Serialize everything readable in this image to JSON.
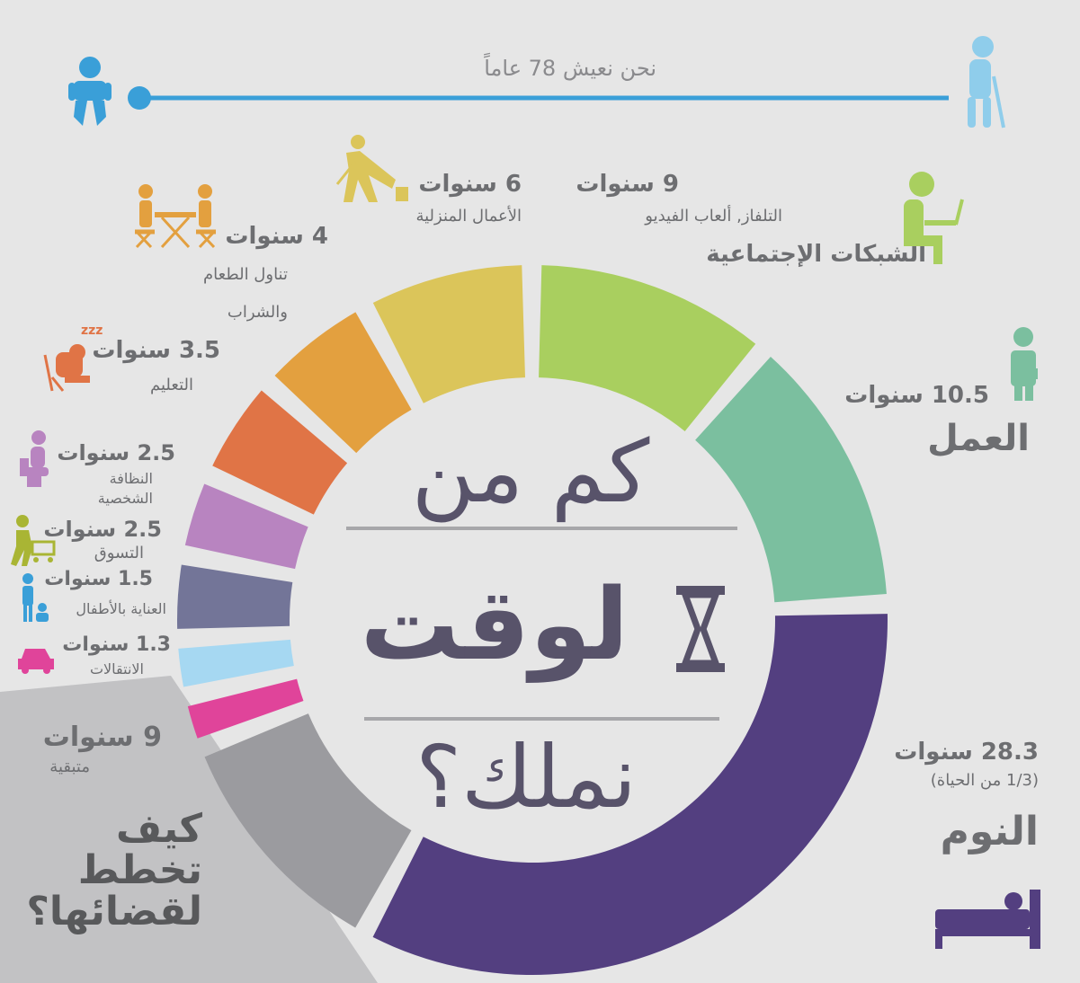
{
  "header": {
    "lifespan_text": "نحن نعيش 78 عاماً"
  },
  "center": {
    "line1": "كم من",
    "line2": "لوقت",
    "line3": "نملك؟"
  },
  "plan": {
    "text_lines": [
      "كيف",
      "تخطط",
      "لقضائها؟"
    ]
  },
  "colors": {
    "background": "#e6e6e6",
    "timeline": "#3a9fd8",
    "sleep": "#533f80",
    "work": "#7bbf9f",
    "screens": "#a9cf5f",
    "housework": "#dbc55a",
    "eating": "#e3a03f",
    "education": "#e07446",
    "hygiene": "#b884c0",
    "shopping": "#737598",
    "childcare": "#a6d8f2",
    "transport": "#e0449a",
    "remaining": "#9b9b9f"
  },
  "chart_data": {
    "type": "pie",
    "donut": true,
    "total_years": 78,
    "segments": [
      {
        "key": "screens",
        "years": 9,
        "value_label": "9 سنوات",
        "label": "التلفاز, ألعاب الفيديو",
        "sublabel": "الشبكات الإجتماعية",
        "color": "#a9cf5f",
        "icon": "person-laptop-icon"
      },
      {
        "key": "work",
        "years": 10.5,
        "value_label": "10.5 سنوات",
        "label": "العمل",
        "color": "#7bbf9f",
        "icon": "businessman-icon"
      },
      {
        "key": "sleep",
        "years": 28.3,
        "value_label": "28.3 سنوات",
        "label": "النوم",
        "sublabel": "(1/3 من الحياة)",
        "color": "#533f80",
        "icon": "bed-icon"
      },
      {
        "key": "remaining",
        "years": 9,
        "value_label": "9 سنوات",
        "label": "متبقية",
        "color": "#9b9b9f"
      },
      {
        "key": "transport",
        "years": 1.3,
        "value_label": "1.3 سنوات",
        "label": "الانتقالات",
        "color": "#e0449a",
        "icon": "car-icon"
      },
      {
        "key": "childcare",
        "years": 1.5,
        "value_label": "1.5 سنوات",
        "label": "العناية بالأطفال",
        "color": "#a6d8f2",
        "icon": "parent-child-icon"
      },
      {
        "key": "shopping",
        "years": 2.5,
        "value_label": "2.5 سنوات",
        "label": "التسوق",
        "color": "#737598",
        "icon": "shopping-cart-icon"
      },
      {
        "key": "hygiene",
        "years": 2.5,
        "value_label": "2.5 سنوات",
        "label": "النظافة الشخصية",
        "color": "#b884c0",
        "icon": "toilet-icon"
      },
      {
        "key": "education",
        "years": 3.5,
        "value_label": "3.5 سنوات",
        "label": "التعليم",
        "color": "#e07446",
        "icon": "sleeping-student-icon"
      },
      {
        "key": "eating",
        "years": 4,
        "value_label": "4 سنوات",
        "label": "تناول الطعام والشراب",
        "color": "#e3a03f",
        "icon": "dining-table-icon"
      },
      {
        "key": "housework",
        "years": 6,
        "value_label": "6 سنوات",
        "label": "الأعمال المنزلية",
        "color": "#dbc55a",
        "icon": "mopping-icon"
      }
    ]
  }
}
